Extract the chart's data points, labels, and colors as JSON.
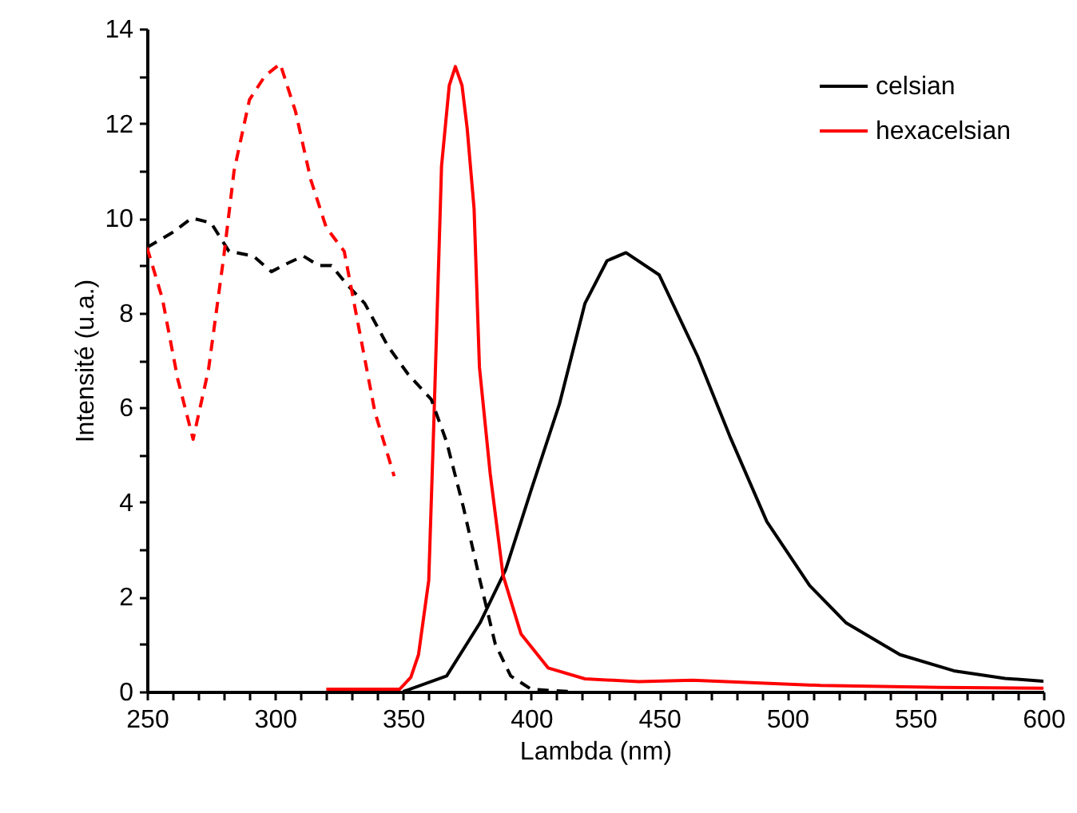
{
  "chart_data": {
    "type": "line",
    "xlabel": "Lambda (nm)",
    "ylabel": "Intensité (u.a.)",
    "xlim": [
      250,
      600
    ],
    "ylim": [
      0,
      14
    ],
    "xticks": [
      250,
      {
        "value": 260,
        "label": null
      },
      {
        "value": 270,
        "label": null
      },
      {
        "value": 280,
        "label": null
      },
      {
        "value": 290,
        "label": null
      },
      300,
      {
        "value": 310,
        "label": null
      },
      {
        "value": 320,
        "label": null
      },
      {
        "value": 330,
        "label": null
      },
      {
        "value": 340,
        "label": null
      },
      350,
      {
        "value": 360,
        "label": null
      },
      {
        "value": 370,
        "label": null
      },
      {
        "value": 380,
        "label": null
      },
      {
        "value": 390,
        "label": null
      },
      400,
      {
        "value": 410,
        "label": null
      },
      {
        "value": 420,
        "label": null
      },
      {
        "value": 430,
        "label": null
      },
      {
        "value": 440,
        "label": null
      },
      450,
      {
        "value": 460,
        "label": null
      },
      {
        "value": 470,
        "label": null
      },
      {
        "value": 480,
        "label": null
      },
      {
        "value": 490,
        "label": null
      },
      500,
      {
        "value": 510,
        "label": null
      },
      {
        "value": 520,
        "label": null
      },
      {
        "value": 530,
        "label": null
      },
      {
        "value": 540,
        "label": null
      },
      550,
      {
        "value": 560,
        "label": null
      },
      {
        "value": 570,
        "label": null
      },
      {
        "value": 580,
        "label": null
      },
      {
        "value": 590,
        "label": null
      },
      600
    ],
    "yticks": [
      0,
      {
        "value": 1,
        "label": null
      },
      2,
      {
        "value": 3,
        "label": null
      },
      4,
      {
        "value": 5,
        "label": null
      },
      6,
      {
        "value": 7,
        "label": null
      },
      8,
      {
        "value": 9,
        "label": null
      },
      10,
      {
        "value": 11,
        "label": null
      },
      12,
      {
        "value": 13,
        "label": null
      },
      14
    ],
    "legend": "top right",
    "series": [
      {
        "name": "celsian",
        "color": "#000000",
        "line_style": "solid",
        "x": [
          350,
          367,
          380,
          390,
          400,
          411,
          421,
          429.6,
          437,
          450,
          465,
          477.5,
          492,
          508.7,
          523,
          544,
          565,
          585,
          600
        ],
        "values": [
          0,
          0.33,
          1.45,
          2.57,
          4.26,
          6.07,
          8.2,
          9.1,
          9.27,
          8.8,
          7.08,
          5.4,
          3.59,
          2.24,
          1.45,
          0.78,
          0.44,
          0.28,
          0.22
        ]
      },
      {
        "name": "hexacelsian",
        "color": "#ff0000",
        "line_style": "solid",
        "x": [
          320,
          348.6,
          353,
          356,
          360,
          362,
          365,
          368,
          370.4,
          373,
          375,
          377.7,
          379.8,
          384,
          389,
          396,
          406.6,
          421,
          442,
          463,
          513,
          560,
          600
        ],
        "values": [
          0.05,
          0.05,
          0.3,
          0.78,
          2.35,
          5.7,
          11.1,
          12.8,
          13.2,
          12.8,
          11.9,
          10.2,
          6.85,
          4.6,
          2.46,
          1.22,
          0.5,
          0.27,
          0.21,
          0.24,
          0.13,
          0.09,
          0.07
        ]
      },
      {
        "color": "#000000",
        "line_style": "dashed",
        "x": [
          250,
          260,
          267.5,
          275,
          282,
          291.5,
          298.6,
          305,
          311,
          317,
          322,
          328,
          335,
          344,
          352,
          361,
          367,
          373.5,
          380,
          386,
          392,
          400,
          415
        ],
        "values": [
          9.38,
          9.7,
          10.0,
          9.9,
          9.3,
          9.2,
          8.87,
          9.05,
          9.2,
          9.0,
          9.0,
          8.6,
          8.2,
          7.3,
          6.7,
          6.17,
          5.27,
          3.9,
          2.35,
          1.0,
          0.33,
          0.05,
          0
        ]
      },
      {
        "color": "#ff0000",
        "line_style": "dashed",
        "x": [
          250,
          256,
          262,
          268,
          274,
          280,
          284,
          290,
          296,
          302,
          308,
          314,
          320,
          327,
          333,
          339,
          346.5
        ],
        "values": [
          9.38,
          8.3,
          6.6,
          5.33,
          6.8,
          9.2,
          11.0,
          12.5,
          13.0,
          13.26,
          12.25,
          10.8,
          9.8,
          9.3,
          7.6,
          5.9,
          4.55
        ]
      }
    ]
  }
}
